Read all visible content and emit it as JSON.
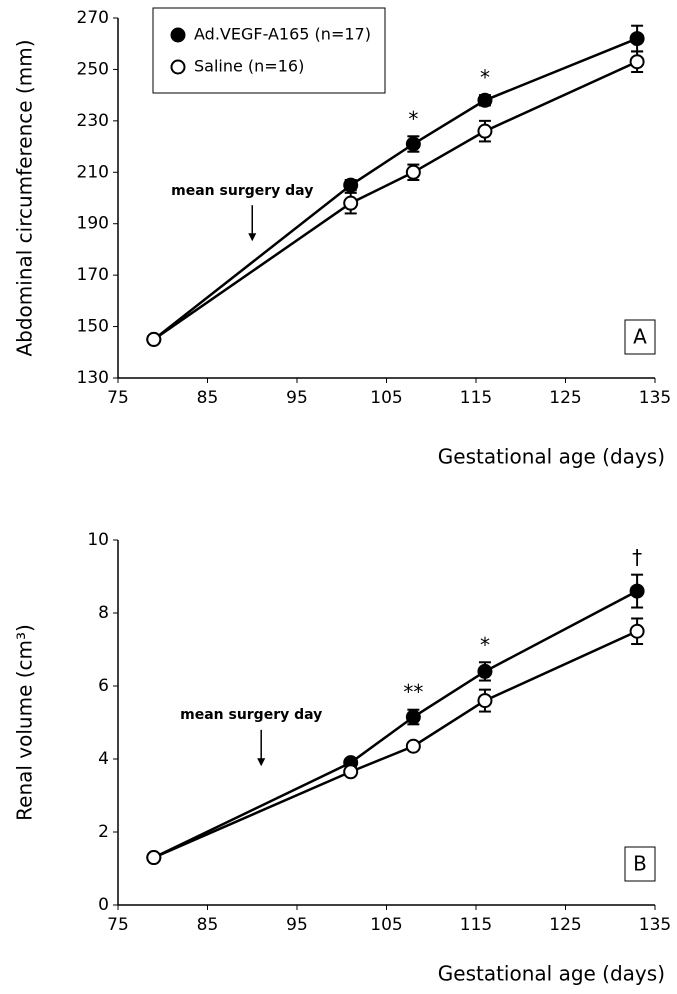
{
  "chart_data": [
    {
      "type": "line",
      "panel_label": "A",
      "xlabel": "Gestational age (days)",
      "ylabel": "Abdominal circumference (mm)",
      "x": [
        79,
        101,
        108,
        116,
        133
      ],
      "series": [
        {
          "name": "Ad.VEGF-A165 (n=17)",
          "color": "#000000",
          "marker_fill": "#000000",
          "values": [
            145,
            205,
            221,
            238,
            262
          ],
          "errors": [
            1,
            2,
            3,
            2,
            5
          ],
          "significance": [
            null,
            null,
            "*",
            "*",
            null
          ]
        },
        {
          "name": "Saline (n=16)",
          "color": "#000000",
          "marker_fill": "#ffffff",
          "values": [
            145,
            198,
            210,
            226,
            253
          ],
          "errors": [
            1,
            4,
            3,
            4,
            4
          ]
        }
      ],
      "annotation": {
        "text": "mean surgery day",
        "x": 90
      },
      "xlim": [
        75,
        135
      ],
      "xticks": [
        75,
        85,
        95,
        105,
        115,
        125,
        135
      ],
      "ylim": [
        130,
        270
      ],
      "yticks": [
        130,
        150,
        170,
        190,
        210,
        230,
        250,
        270
      ],
      "legend": "upper left"
    },
    {
      "type": "line",
      "panel_label": "B",
      "xlabel": "Gestational age (days)",
      "ylabel": "Renal volume (cm³)",
      "x": [
        79,
        101,
        108,
        116,
        133
      ],
      "series": [
        {
          "name": "Ad.VEGF-A165 (n=17)",
          "color": "#000000",
          "marker_fill": "#000000",
          "values": [
            1.3,
            3.9,
            5.15,
            6.4,
            8.6
          ],
          "errors": [
            0.05,
            0.1,
            0.2,
            0.25,
            0.45
          ],
          "significance": [
            null,
            null,
            "**",
            "*",
            "†"
          ]
        },
        {
          "name": "Saline (n=16)",
          "color": "#000000",
          "marker_fill": "#ffffff",
          "values": [
            1.3,
            3.65,
            4.35,
            5.6,
            7.5
          ],
          "errors": [
            0.05,
            0.1,
            0.1,
            0.3,
            0.35
          ]
        }
      ],
      "annotation": {
        "text": "mean surgery day",
        "x": 91
      },
      "xlim": [
        75,
        135
      ],
      "xticks": [
        75,
        85,
        95,
        105,
        115,
        125,
        135
      ],
      "ylim": [
        0,
        10
      ],
      "yticks": [
        0,
        2,
        4,
        6,
        8,
        10
      ]
    }
  ]
}
